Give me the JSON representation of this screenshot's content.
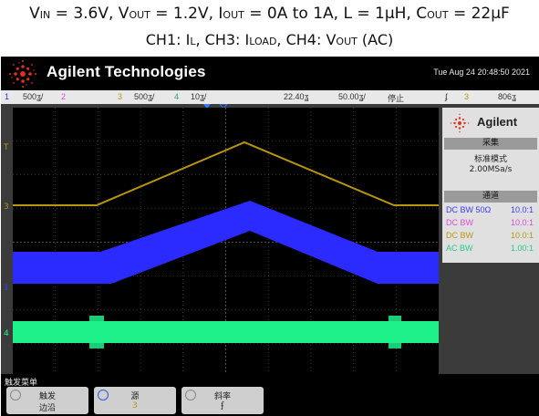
{
  "caption": {
    "line1": [
      {
        "t": "V"
      },
      {
        "t": "IN",
        "s": true
      },
      {
        "t": " = 3.6V, V"
      },
      {
        "t": "OUT",
        "s": true
      },
      {
        "t": " = 1.2V, I"
      },
      {
        "t": "OUT",
        "s": true
      },
      {
        "t": " = 0A to 1A, L = 1µH, C"
      },
      {
        "t": "OUT",
        "s": true
      },
      {
        "t": " = 22µF"
      }
    ],
    "line2": [
      {
        "t": "CH1: I"
      },
      {
        "t": "L",
        "s": true
      },
      {
        "t": ", CH3: I"
      },
      {
        "t": "LOAD",
        "s": true
      },
      {
        "t": ", CH4: V"
      },
      {
        "t": "OUT",
        "s": true
      },
      {
        "t": " (AC)"
      }
    ]
  },
  "header": {
    "brand": "Agilent Technologies",
    "datetime": "Tue Aug 24 20:48:50 2021"
  },
  "status": {
    "ch1_num": "1",
    "ch1_scale": "500ʓ/",
    "ch2_num": "2",
    "ch3_num": "3",
    "ch3_scale": "500ʓ/",
    "ch4_num": "4",
    "ch4_scale": "10ʓ/",
    "time_pos": "22.40ʓ",
    "time_scale": "50.00ʓ/",
    "run_state": "停止",
    "trig_icon": "ʄ",
    "trig_ch": "3",
    "trig_level": "806ʓ"
  },
  "panel": {
    "brand": "Agilent",
    "acq_title": "采集",
    "acq_mode": "标准模式",
    "sample_rate": "2.00MSa/s",
    "chan_title": "通道",
    "channels": [
      {
        "coupling": "DC BW 50Ω",
        "ratio": "10.0:1",
        "color": "#3a3aff"
      },
      {
        "coupling": "DC BW",
        "ratio": "10.0:1",
        "color": "#d94bd9"
      },
      {
        "coupling": "DC BW",
        "ratio": "10.0:1",
        "color": "#b8960c"
      },
      {
        "coupling": "AC BW",
        "ratio": "1.00:1",
        "color": "#25c98a"
      }
    ]
  },
  "markers": {
    "ch3": "3",
    "ch1": "1",
    "ch4": "4",
    "trig": "T"
  },
  "softkeys": {
    "menu_title": "触发菜单",
    "k1_top": "触发",
    "k1_bot": "边沿",
    "k2_top": "源",
    "k2_bot": "3",
    "k3_top": "斜率",
    "k3_bot": "ʄ"
  },
  "colors": {
    "ch1": "#2b2bff",
    "ch2": "#d94bd9",
    "ch3": "#b8960c",
    "ch4": "#1ef08a",
    "grid": "#5a5a5a",
    "status_bg": "#e8e8e8"
  }
}
